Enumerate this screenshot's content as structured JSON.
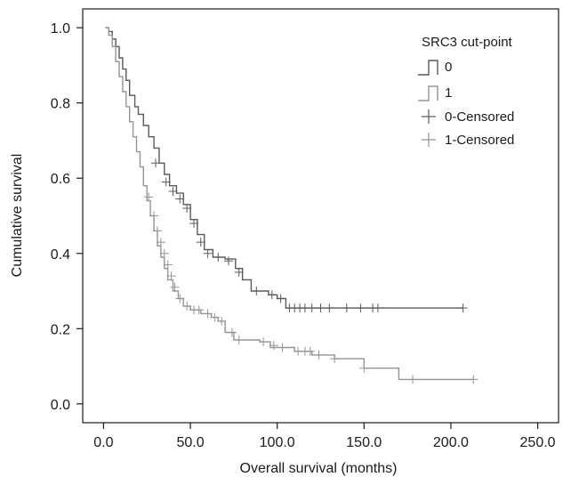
{
  "chart_data": {
    "type": "line",
    "xlabel": "Overall survival (months)",
    "ylabel": "Cumulative survival",
    "xlim": [
      -12,
      262
    ],
    "ylim": [
      -0.05,
      1.05
    ],
    "x_ticks": [
      "0.0",
      "50.0",
      "100.0",
      "150.0",
      "200.0",
      "250.0"
    ],
    "y_ticks": [
      "0.0",
      "0.2",
      "0.4",
      "0.6",
      "0.8",
      "1.0"
    ],
    "legend": {
      "title": "SRC3 cut-point",
      "position": "top-right",
      "entries": [
        "0",
        "1",
        "0-Censored",
        "1-Censored"
      ]
    },
    "colors": {
      "series_0": "#5a5a5a",
      "series_1": "#959595",
      "axis": "#1a1a1a"
    },
    "series": [
      {
        "name": "0",
        "steps": [
          [
            1,
            1.0
          ],
          [
            3,
            0.99
          ],
          [
            5,
            0.97
          ],
          [
            7,
            0.95
          ],
          [
            9,
            0.92
          ],
          [
            11,
            0.89
          ],
          [
            13,
            0.86
          ],
          [
            15,
            0.82
          ],
          [
            18,
            0.79
          ],
          [
            20,
            0.77
          ],
          [
            23,
            0.74
          ],
          [
            26,
            0.71
          ],
          [
            29,
            0.68
          ],
          [
            32,
            0.64
          ],
          [
            35,
            0.61
          ],
          [
            38,
            0.58
          ],
          [
            42,
            0.56
          ],
          [
            46,
            0.53
          ],
          [
            50,
            0.49
          ],
          [
            54,
            0.45
          ],
          [
            58,
            0.41
          ],
          [
            63,
            0.39
          ],
          [
            70,
            0.385
          ],
          [
            76,
            0.36
          ],
          [
            80,
            0.33
          ],
          [
            85,
            0.3
          ],
          [
            95,
            0.29
          ],
          [
            100,
            0.28
          ],
          [
            105,
            0.255
          ],
          [
            207,
            0.255
          ]
        ],
        "censored": [
          [
            30,
            0.64
          ],
          [
            36,
            0.59
          ],
          [
            40,
            0.565
          ],
          [
            44,
            0.545
          ],
          [
            48,
            0.52
          ],
          [
            52,
            0.48
          ],
          [
            56,
            0.43
          ],
          [
            60,
            0.4
          ],
          [
            66,
            0.39
          ],
          [
            72,
            0.38
          ],
          [
            78,
            0.35
          ],
          [
            88,
            0.3
          ],
          [
            97,
            0.29
          ],
          [
            102,
            0.28
          ],
          [
            107,
            0.255
          ],
          [
            110,
            0.255
          ],
          [
            113,
            0.255
          ],
          [
            116,
            0.255
          ],
          [
            120,
            0.255
          ],
          [
            125,
            0.255
          ],
          [
            130,
            0.255
          ],
          [
            140,
            0.255
          ],
          [
            148,
            0.255
          ],
          [
            155,
            0.255
          ],
          [
            158,
            0.255
          ],
          [
            207,
            0.255
          ]
        ]
      },
      {
        "name": "1",
        "steps": [
          [
            1,
            1.0
          ],
          [
            3,
            0.98
          ],
          [
            5,
            0.95
          ],
          [
            7,
            0.91
          ],
          [
            9,
            0.87
          ],
          [
            11,
            0.83
          ],
          [
            13,
            0.79
          ],
          [
            15,
            0.75
          ],
          [
            17,
            0.71
          ],
          [
            19,
            0.67
          ],
          [
            21,
            0.63
          ],
          [
            23,
            0.58
          ],
          [
            25,
            0.54
          ],
          [
            27,
            0.5
          ],
          [
            29,
            0.46
          ],
          [
            31,
            0.42
          ],
          [
            33,
            0.39
          ],
          [
            35,
            0.36
          ],
          [
            37,
            0.33
          ],
          [
            40,
            0.3
          ],
          [
            43,
            0.28
          ],
          [
            46,
            0.26
          ],
          [
            50,
            0.25
          ],
          [
            56,
            0.24
          ],
          [
            62,
            0.23
          ],
          [
            66,
            0.22
          ],
          [
            70,
            0.19
          ],
          [
            75,
            0.17
          ],
          [
            90,
            0.165
          ],
          [
            96,
            0.15
          ],
          [
            110,
            0.14
          ],
          [
            120,
            0.13
          ],
          [
            133,
            0.12
          ],
          [
            150,
            0.095
          ],
          [
            170,
            0.065
          ],
          [
            213,
            0.065
          ]
        ],
        "censored": [
          [
            26,
            0.55
          ],
          [
            29,
            0.5
          ],
          [
            31,
            0.46
          ],
          [
            33,
            0.43
          ],
          [
            35,
            0.4
          ],
          [
            37,
            0.37
          ],
          [
            39,
            0.34
          ],
          [
            41,
            0.31
          ],
          [
            44,
            0.28
          ],
          [
            48,
            0.26
          ],
          [
            52,
            0.25
          ],
          [
            55,
            0.25
          ],
          [
            60,
            0.24
          ],
          [
            64,
            0.23
          ],
          [
            68,
            0.22
          ],
          [
            74,
            0.19
          ],
          [
            78,
            0.17
          ],
          [
            92,
            0.165
          ],
          [
            98,
            0.155
          ],
          [
            103,
            0.15
          ],
          [
            112,
            0.14
          ],
          [
            116,
            0.14
          ],
          [
            119,
            0.14
          ],
          [
            124,
            0.13
          ],
          [
            133,
            0.12
          ],
          [
            150,
            0.095
          ],
          [
            178,
            0.065
          ],
          [
            213,
            0.065
          ]
        ]
      }
    ]
  }
}
